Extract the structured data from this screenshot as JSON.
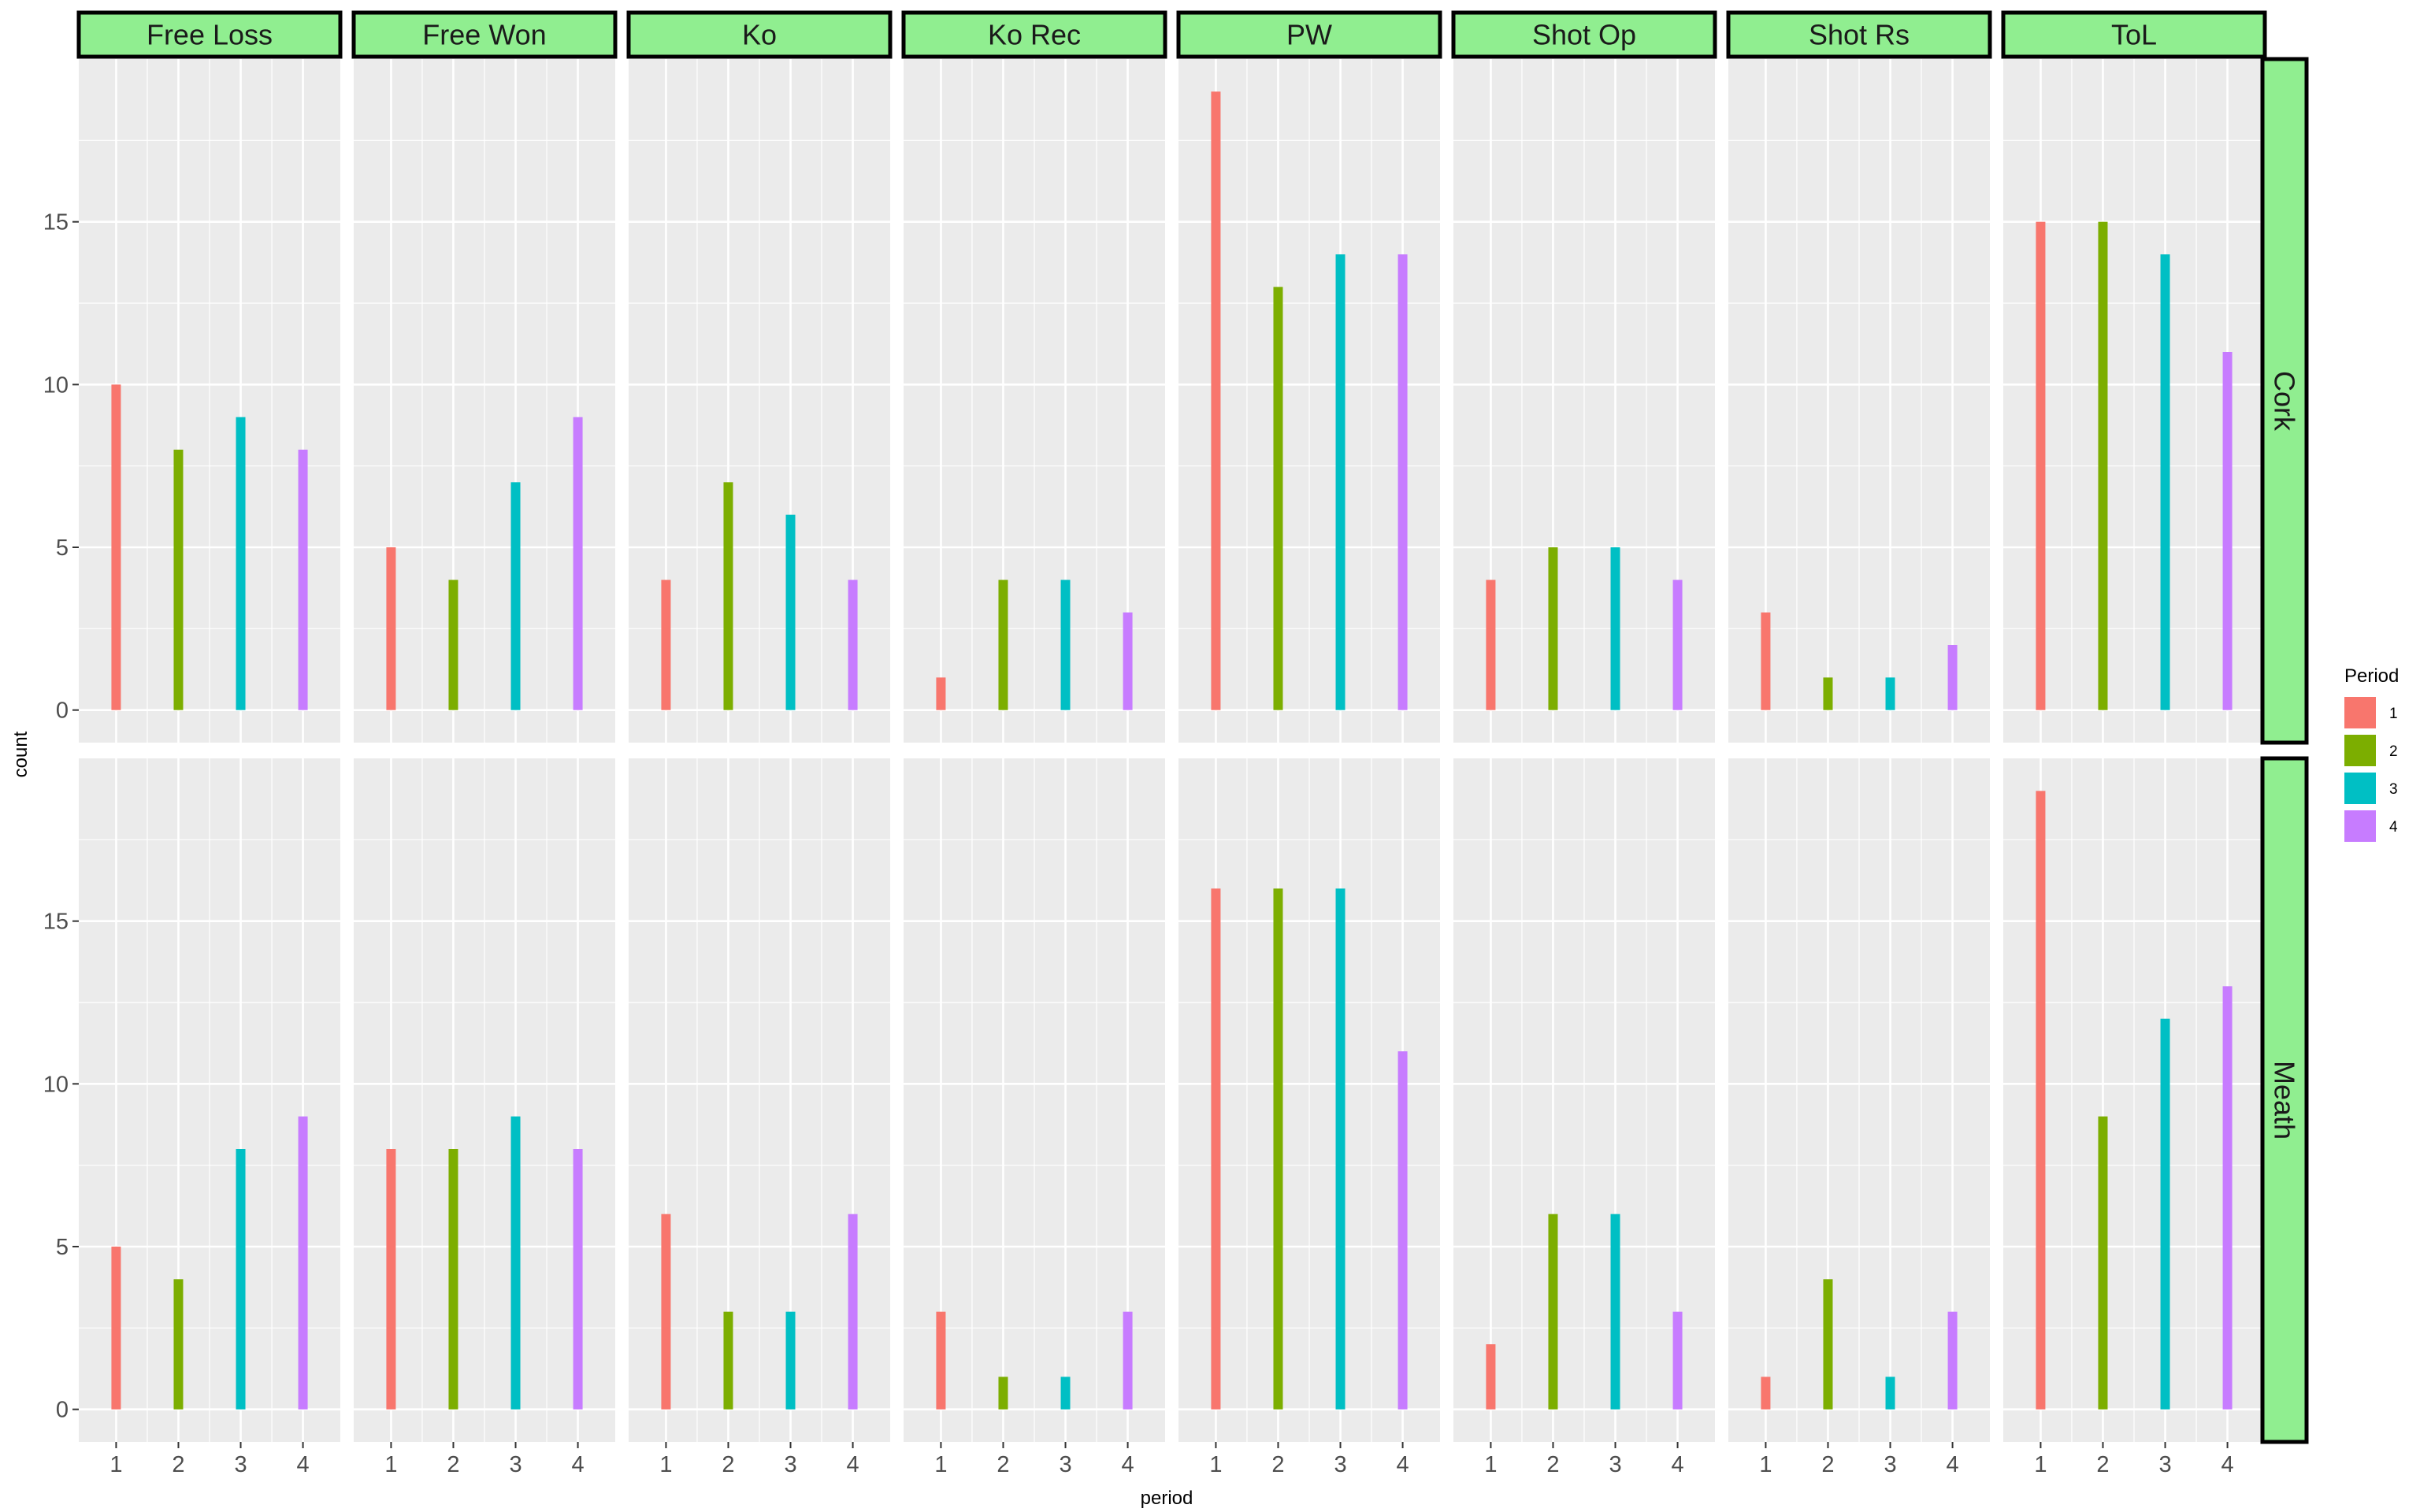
{
  "chart_data": {
    "type": "bar",
    "xlabel": "period",
    "ylabel": "count",
    "x_categories": [
      "1",
      "2",
      "3",
      "4"
    ],
    "ylim": [
      -1,
      20
    ],
    "y_ticks": [
      0,
      5,
      10,
      15
    ],
    "grid": true,
    "facet_columns": [
      "Free Loss",
      "Free Won",
      "Ko",
      "Ko Rec",
      "PW",
      "Shot Op",
      "Shot Rs",
      "ToL"
    ],
    "facet_rows": [
      "Cork",
      "Meath"
    ],
    "legend": {
      "title": "Period",
      "placement": "right",
      "entries": [
        {
          "label": "1",
          "color": "#F8766D"
        },
        {
          "label": "2",
          "color": "#7CAE00"
        },
        {
          "label": "3",
          "color": "#00BFC4"
        },
        {
          "label": "4",
          "color": "#C77CFF"
        }
      ]
    },
    "values": {
      "Cork": {
        "Free Loss": [
          10,
          8,
          9,
          8
        ],
        "Free Won": [
          5,
          4,
          7,
          9
        ],
        "Ko": [
          4,
          7,
          6,
          4
        ],
        "Ko Rec": [
          1,
          4,
          4,
          3
        ],
        "PW": [
          19,
          13,
          14,
          14
        ],
        "Shot Op": [
          4,
          5,
          5,
          4
        ],
        "Shot Rs": [
          3,
          1,
          1,
          2
        ],
        "ToL": [
          15,
          15,
          14,
          11
        ]
      },
      "Meath": {
        "Free Loss": [
          5,
          4,
          8,
          9
        ],
        "Free Won": [
          8,
          8,
          9,
          8
        ],
        "Ko": [
          6,
          3,
          3,
          6
        ],
        "Ko Rec": [
          3,
          1,
          1,
          3
        ],
        "PW": [
          16,
          16,
          16,
          11
        ],
        "Shot Op": [
          2,
          6,
          6,
          3
        ],
        "Shot Rs": [
          1,
          4,
          1,
          3
        ],
        "ToL": [
          19,
          9,
          12,
          13
        ]
      }
    }
  },
  "colors": {
    "panel_background": "#EBEBEB",
    "grid_major": "#FFFFFF",
    "strip_background": "#90EE90",
    "strip_border": "#000000"
  }
}
